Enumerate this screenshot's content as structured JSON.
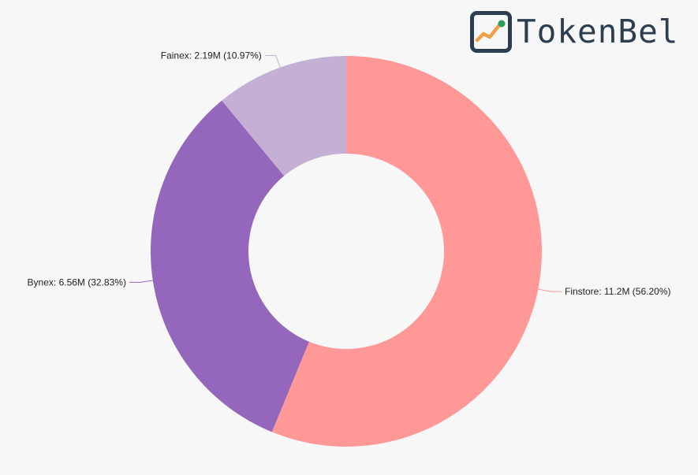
{
  "brand": {
    "name": "TokenBel",
    "logo_icon": "trend-chart-icon",
    "colors": {
      "frame": "#2d3e50",
      "line": "#f0a045",
      "dot": "#2aa05a"
    }
  },
  "chart_data": {
    "type": "pie",
    "variant": "donut",
    "title": "",
    "slices": [
      {
        "name": "Finstore",
        "value": 11.2,
        "value_label": "11.2M",
        "percent": 56.2,
        "percent_label": "56.20%",
        "color": "#ff9896",
        "label": "Finstore: 11.2M (56.20%)"
      },
      {
        "name": "Bynex",
        "value": 6.56,
        "value_label": "6.56M",
        "percent": 32.83,
        "percent_label": "32.83%",
        "color": "#9467bd",
        "label": "Bynex: 6.56M (32.83%)"
      },
      {
        "name": "Fainex",
        "value": 2.19,
        "value_label": "2.19M",
        "percent": 10.97,
        "percent_label": "10.97%",
        "color": "#c5b0d5",
        "label": "Fainex: 2.19M (10.97%)"
      }
    ],
    "start_angle": "12 o'clock",
    "direction": "clockwise",
    "legend": "none"
  }
}
